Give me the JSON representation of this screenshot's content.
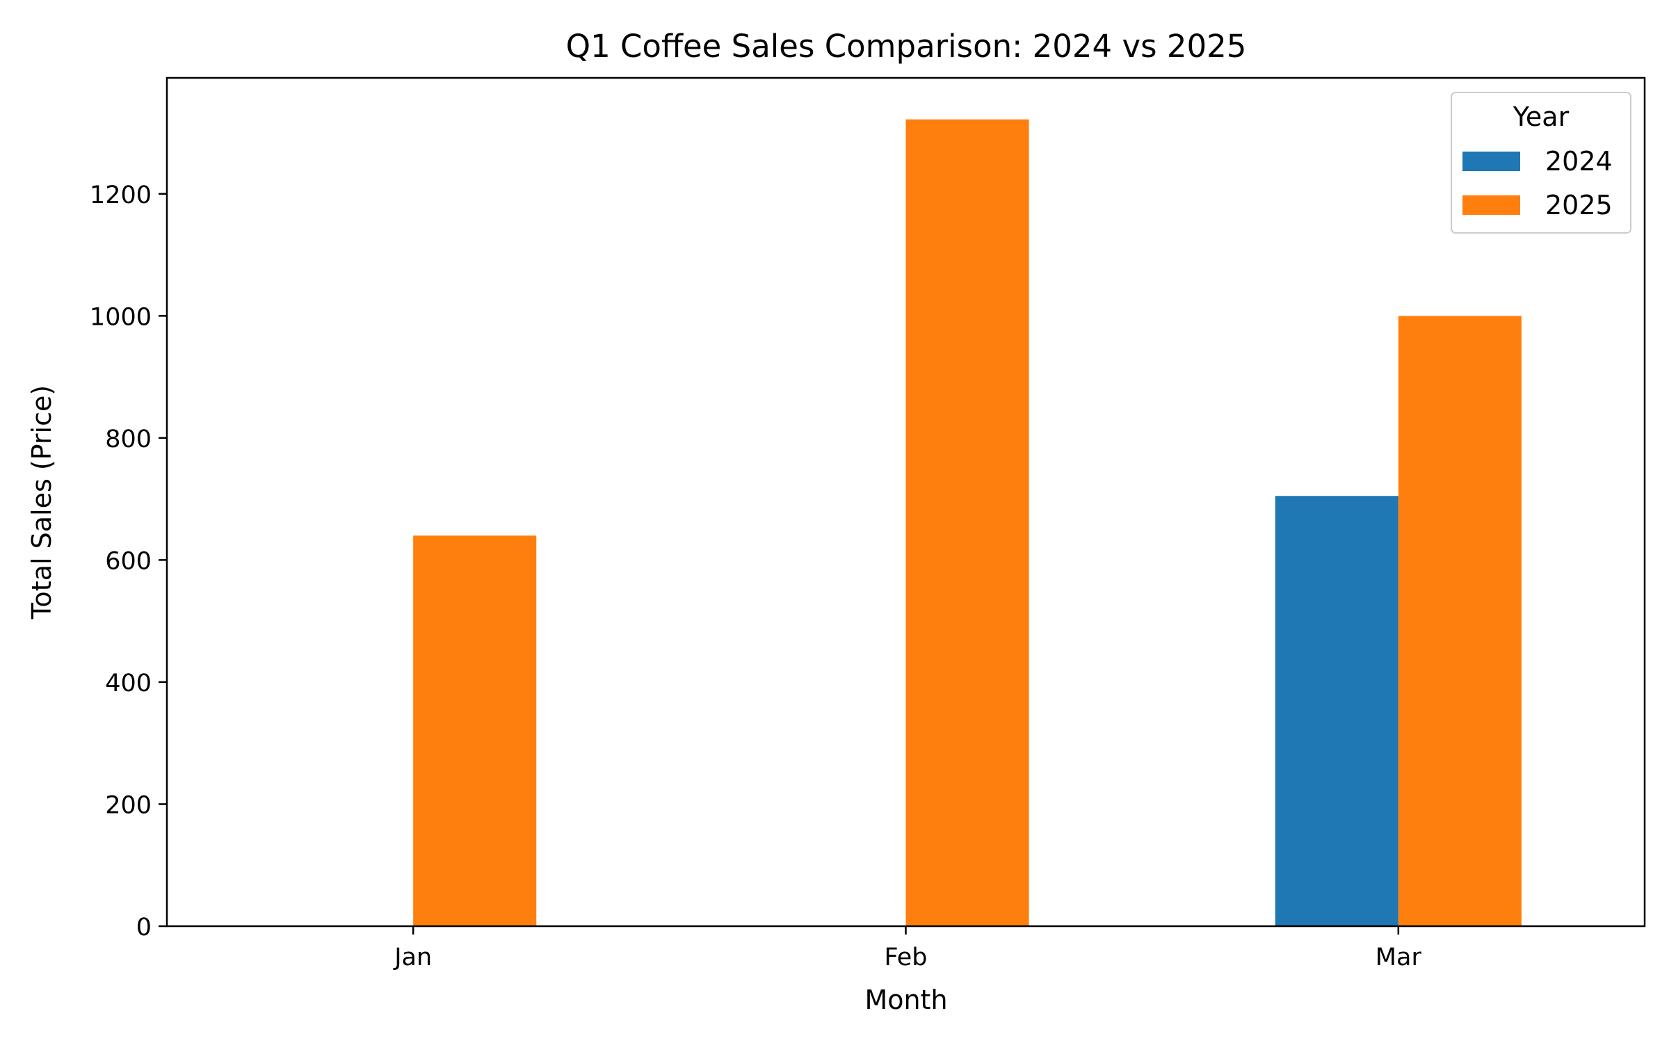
{
  "chart_data": {
    "type": "bar",
    "title": "Q1 Coffee Sales Comparison: 2024 vs 2025",
    "xlabel": "Month",
    "ylabel": "Total Sales (Price)",
    "categories": [
      "Jan",
      "Feb",
      "Mar"
    ],
    "series": [
      {
        "name": "2024",
        "values": [
          0,
          0,
          705
        ]
      },
      {
        "name": "2025",
        "values": [
          640,
          1322,
          1000
        ]
      }
    ],
    "ylim": [
      0,
      1390
    ],
    "yticks": [
      0,
      200,
      400,
      600,
      800,
      1000,
      1200
    ],
    "grid": false,
    "legend": {
      "title": "Year",
      "placement": "top-right"
    },
    "colors": {
      "2024": "#1f77b4",
      "2025": "#ff7f0e"
    }
  }
}
